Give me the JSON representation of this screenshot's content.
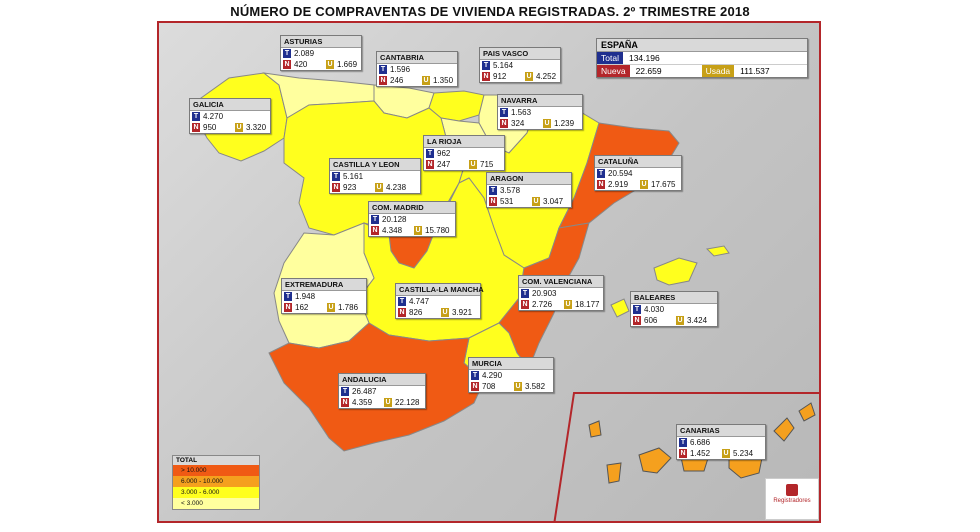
{
  "title": "NÚMERO DE COMPRAVENTAS DE VIVIENDA REGISTRADAS. 2º TRIMESTRE 2018",
  "colors": {
    "gt10000": "#f05a14",
    "r6000_10000": "#f5a01e",
    "r3000_6000": "#ffff1e",
    "lt3000": "#ffff9e",
    "T": "#1f2f8f",
    "N": "#b3262a",
    "U": "#c7a017"
  },
  "espana": {
    "label": "ESPAÑA",
    "total_label": "Total",
    "total": "134.196",
    "nueva_label": "Nueva",
    "nueva": "22.659",
    "usada_label": "Usada",
    "usada": "111.537"
  },
  "tags": {
    "t": "T",
    "n": "N",
    "u": "U"
  },
  "regions": [
    {
      "name": "ASTURIAS",
      "t": "2.089",
      "n": "420",
      "u": "1.669",
      "category": "lt3000"
    },
    {
      "name": "CANTABRIA",
      "t": "1.596",
      "n": "246",
      "u": "1.350",
      "category": "lt3000"
    },
    {
      "name": "PAIS VASCO",
      "t": "5.164",
      "n": "912",
      "u": "4.252",
      "category": "r3000_6000"
    },
    {
      "name": "NAVARRA",
      "t": "1.563",
      "n": "324",
      "u": "1.239",
      "category": "lt3000"
    },
    {
      "name": "GALICIA",
      "t": "4.270",
      "n": "950",
      "u": "3.320",
      "category": "r3000_6000"
    },
    {
      "name": "LA RIOJA",
      "t": "962",
      "n": "247",
      "u": "715",
      "category": "lt3000"
    },
    {
      "name": "CASTILLA Y LEON",
      "t": "5.161",
      "n": "923",
      "u": "4.238",
      "category": "r3000_6000"
    },
    {
      "name": "CATALUÑA",
      "t": "20.594",
      "n": "2.919",
      "u": "17.675",
      "category": "gt10000"
    },
    {
      "name": "ARAGON",
      "t": "3.578",
      "n": "531",
      "u": "3.047",
      "category": "r3000_6000"
    },
    {
      "name": "COM. MADRID",
      "t": "20.128",
      "n": "4.348",
      "u": "15.780",
      "category": "gt10000"
    },
    {
      "name": "EXTREMADURA",
      "t": "1.948",
      "n": "162",
      "u": "1.786",
      "category": "lt3000"
    },
    {
      "name": "CASTILLA-LA MANCHA",
      "t": "4.747",
      "n": "826",
      "u": "3.921",
      "category": "r3000_6000"
    },
    {
      "name": "COM. VALENCIANA",
      "t": "20.903",
      "n": "2.726",
      "u": "18.177",
      "category": "gt10000"
    },
    {
      "name": "BALEARES",
      "t": "4.030",
      "n": "606",
      "u": "3.424",
      "category": "r3000_6000"
    },
    {
      "name": "MURCIA",
      "t": "4.290",
      "n": "708",
      "u": "3.582",
      "category": "r3000_6000"
    },
    {
      "name": "ANDALUCIA",
      "t": "26.487",
      "n": "4.359",
      "u": "22.128",
      "category": "gt10000"
    },
    {
      "name": "CANARIAS",
      "t": "6.686",
      "n": "1.452",
      "u": "5.234",
      "category": "r6000_10000"
    }
  ],
  "legend": {
    "title": "TOTAL",
    "items": [
      {
        "label": "> 10.000",
        "color": "#f05a14"
      },
      {
        "label": "6.000 - 10.000",
        "color": "#f5a01e"
      },
      {
        "label": "3.000 - 6.000",
        "color": "#ffff1e"
      },
      {
        "label": "< 3.000",
        "color": "#ffff9e"
      }
    ]
  },
  "logo": {
    "text": "Registradores"
  }
}
